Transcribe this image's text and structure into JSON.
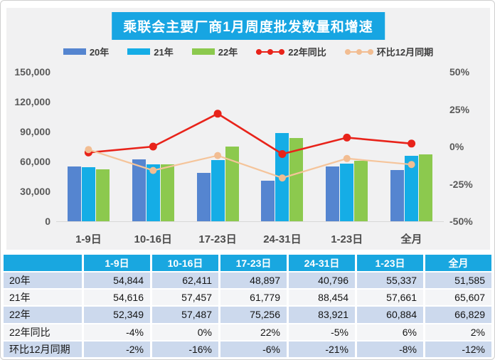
{
  "title": "乘联会主要厂商1月周度批发数量和增速",
  "legend": [
    {
      "label": "20年",
      "type": "bar",
      "color": "#5585d0"
    },
    {
      "label": "21年",
      "type": "bar",
      "color": "#15ade6"
    },
    {
      "label": "22年",
      "type": "bar",
      "color": "#8cc94e"
    },
    {
      "label": "22年同比",
      "type": "line",
      "color": "#e8231a"
    },
    {
      "label": "环比12月同期",
      "type": "line",
      "color": "#f2bd92"
    }
  ],
  "chart_data": {
    "type": "bar+line combo",
    "title": "乘联会主要厂商1月周度批发数量和增速",
    "categories": [
      "1-9日",
      "10-16日",
      "17-23日",
      "24-31日",
      "1-23日",
      "全月"
    ],
    "bar_series": [
      {
        "name": "20年",
        "color": "#5585d0",
        "values": [
          54844,
          62411,
          48897,
          40796,
          55337,
          51585
        ]
      },
      {
        "name": "21年",
        "color": "#15ade6",
        "values": [
          54616,
          57457,
          61779,
          88454,
          57661,
          65607
        ]
      },
      {
        "name": "22年",
        "color": "#8cc94e",
        "values": [
          52349,
          57487,
          75256,
          83921,
          60884,
          66829
        ]
      }
    ],
    "line_series": [
      {
        "name": "22年同比",
        "color": "#e8231a",
        "marker_color": "#e8231a",
        "values_pct": [
          -4,
          0,
          22,
          -5,
          6,
          2
        ]
      },
      {
        "name": "环比12月同期",
        "color": "#f5c49a",
        "marker_color": "#f2bd92",
        "values_pct": [
          -2,
          -16,
          -6,
          -21,
          -8,
          -12
        ]
      }
    ],
    "left_axis": {
      "label_ticks": [
        "150,000",
        "120,000",
        "90,000",
        "60,000",
        "30,000",
        "0"
      ],
      "min": 0,
      "max": 150000,
      "grid": false
    },
    "right_axis": {
      "label_ticks": [
        "50%",
        "25%",
        "0%",
        "-25%",
        "-50%"
      ],
      "min": -50,
      "max": 50
    },
    "legend_position": "top"
  },
  "table": {
    "header": [
      "",
      "1-9日",
      "10-16日",
      "17-23日",
      "24-31日",
      "1-23日",
      "全月"
    ],
    "rows": [
      {
        "label": "20年",
        "values": [
          "54,844",
          "62,411",
          "48,897",
          "40,796",
          "55,337",
          "51,585"
        ]
      },
      {
        "label": "21年",
        "values": [
          "54,616",
          "57,457",
          "61,779",
          "88,454",
          "57,661",
          "65,607"
        ]
      },
      {
        "label": "22年",
        "values": [
          "52,349",
          "57,487",
          "75,256",
          "83,921",
          "60,884",
          "66,829"
        ]
      },
      {
        "label": "22年同比",
        "values": [
          "-4%",
          "0%",
          "22%",
          "-5%",
          "6%",
          "2%"
        ]
      },
      {
        "label": "环比12月同期",
        "values": [
          "-2%",
          "-16%",
          "-6%",
          "-21%",
          "-8%",
          "-12%"
        ]
      }
    ]
  },
  "colors": {
    "panel_bg": "#f1f1f2",
    "title_bg": "#17a5e2",
    "table_header_bg": "#19a7e0",
    "row_blue": "#ccd9ed",
    "row_light": "#f4f5f7",
    "axis_text": "#595959",
    "baseline": "#d8d8d8"
  }
}
